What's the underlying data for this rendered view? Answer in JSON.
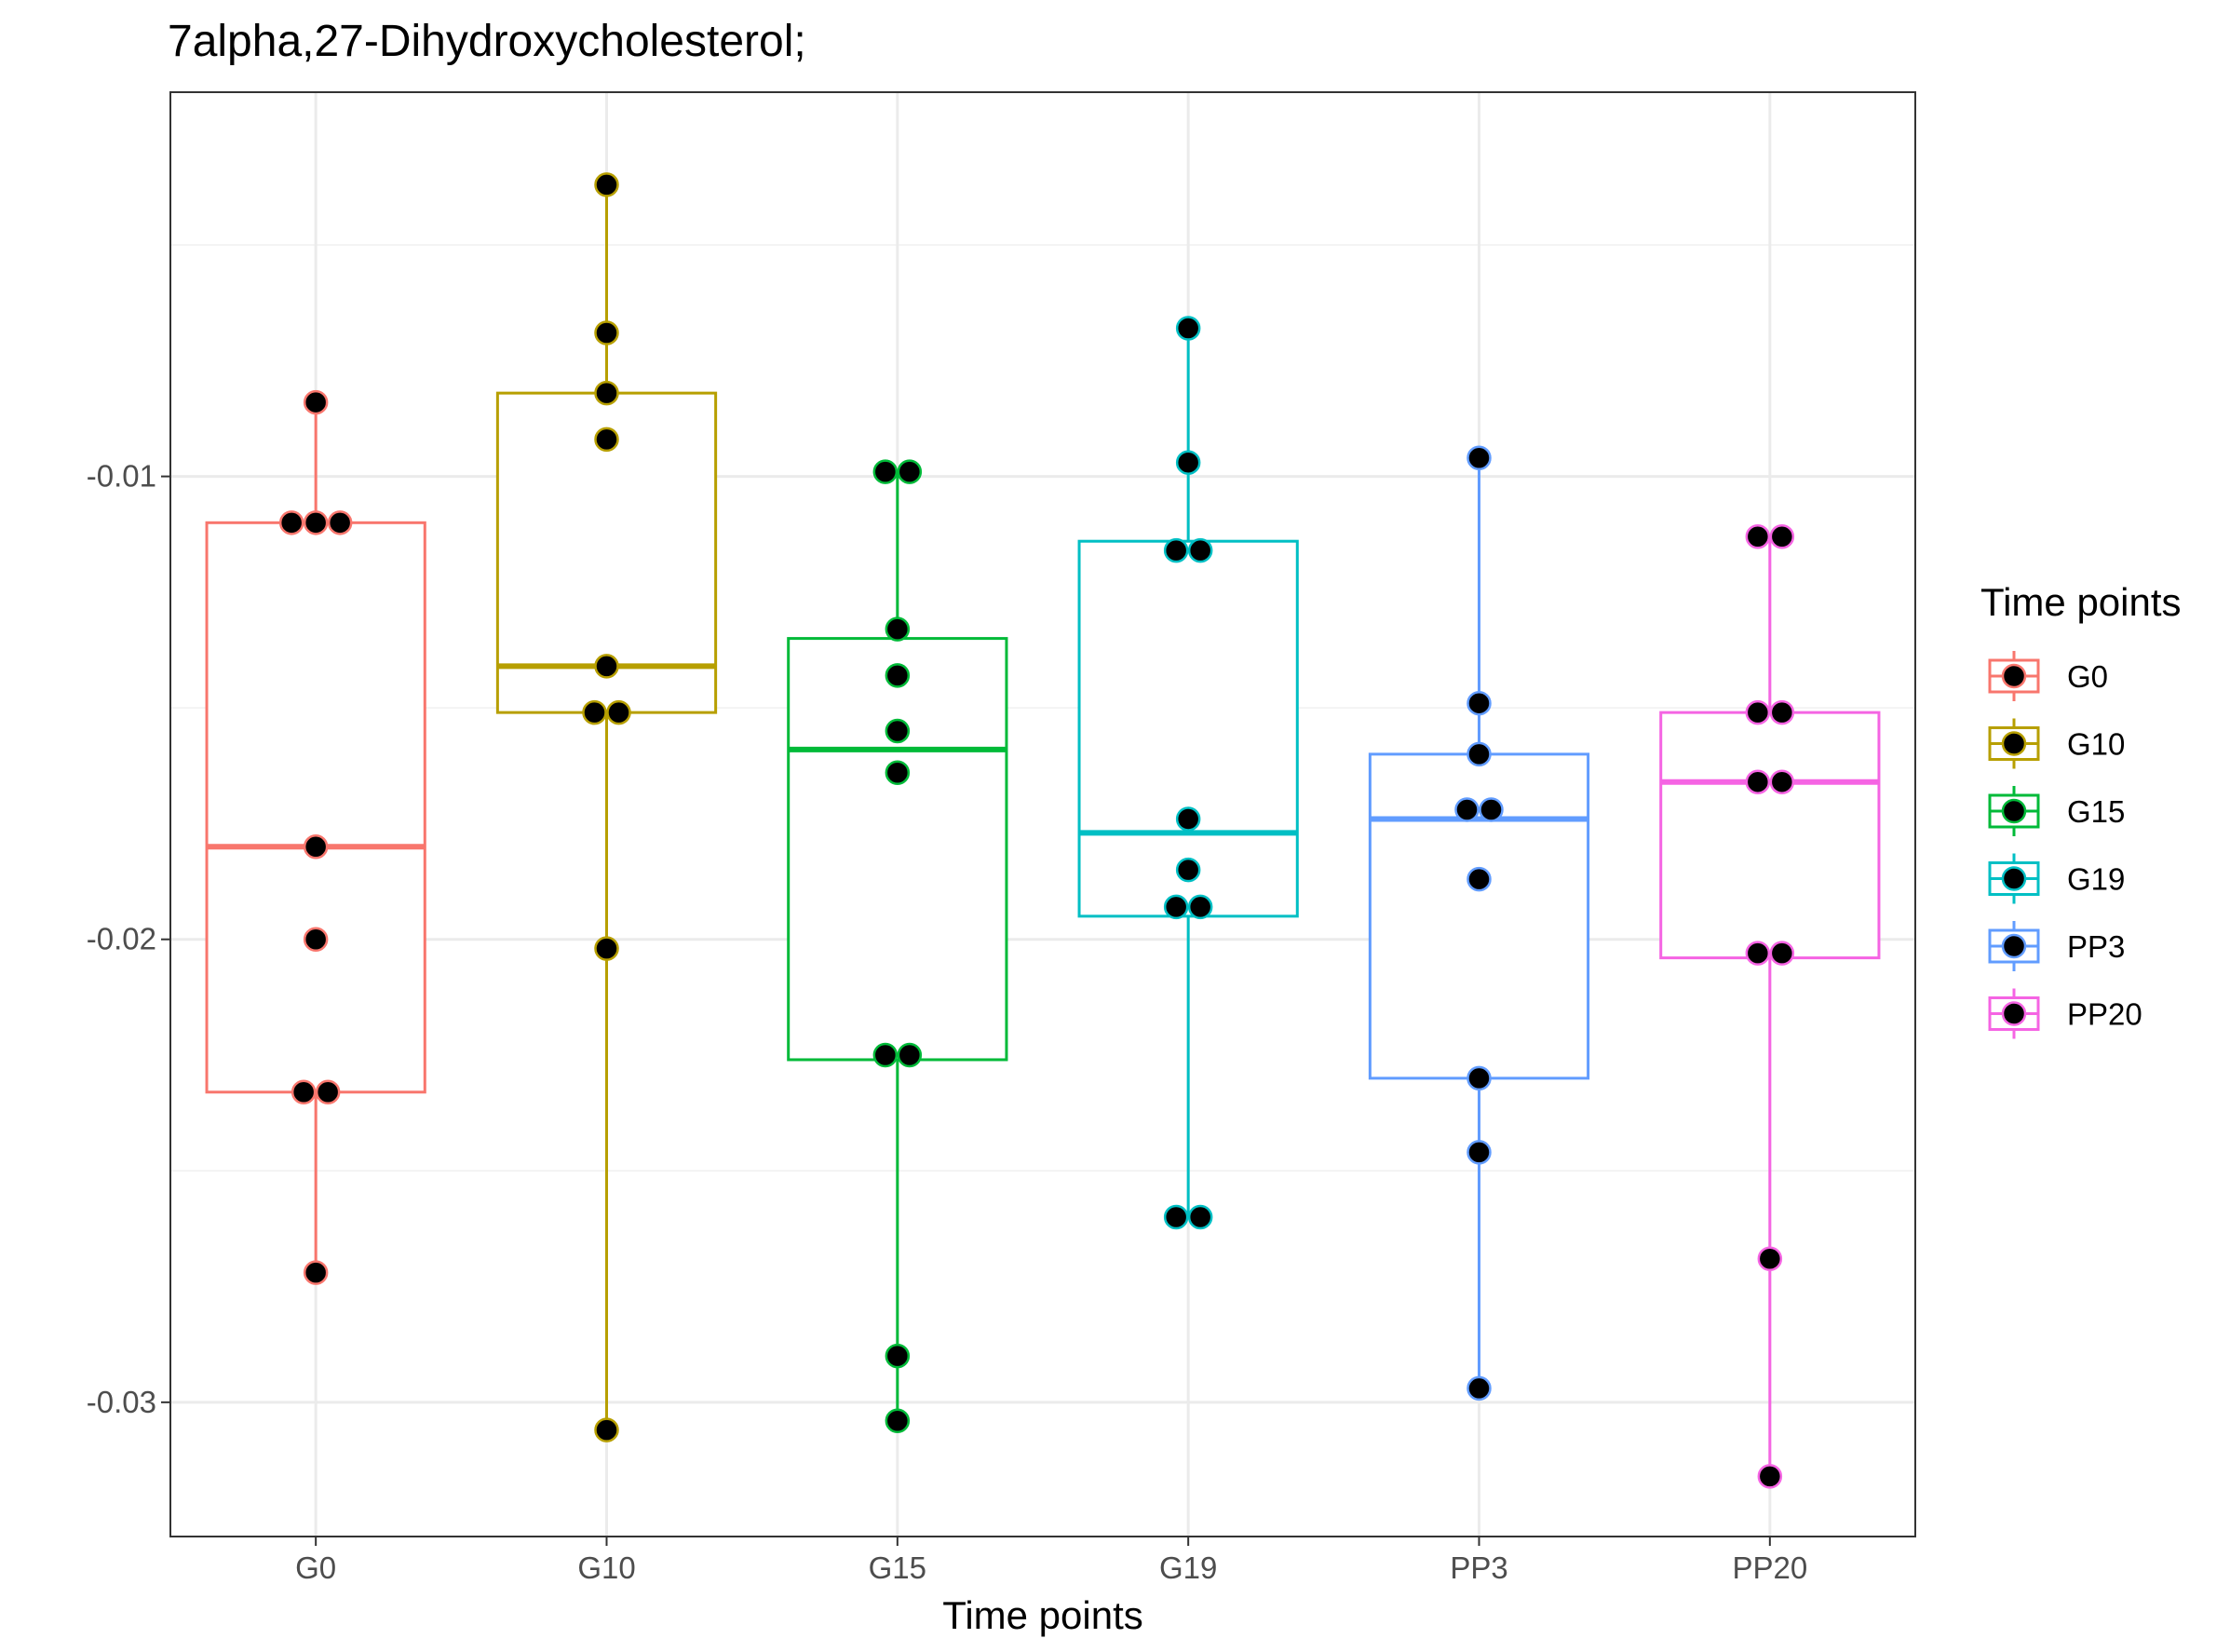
{
  "chart_data": {
    "type": "box",
    "title": "7alpha,27-Dihydroxycholesterol;",
    "xlabel": "Time points",
    "ylabel": "",
    "ylim": [
      -0.0329,
      -0.0017
    ],
    "yticks": [
      -0.01,
      -0.02,
      -0.03
    ],
    "ytick_labels": [
      "-0.01",
      "-0.02",
      "-0.03"
    ],
    "grid": true,
    "legend": {
      "title": "Time points",
      "position": "right"
    },
    "categories": [
      "G0",
      "G10",
      "G15",
      "G19",
      "PP3",
      "PP20"
    ],
    "series": [
      {
        "name": "G0",
        "color": "#F8766D",
        "box": {
          "min": -0.0272,
          "q1": -0.0233,
          "median": -0.018,
          "q3": -0.011,
          "max": -0.0084
        },
        "points": [
          -0.0084,
          -0.011,
          -0.011,
          -0.011,
          -0.018,
          -0.02,
          -0.0233,
          -0.0233,
          -0.0272
        ]
      },
      {
        "name": "G10",
        "color": "#B79F00",
        "box": {
          "min": -0.0306,
          "q1": -0.0151,
          "median": -0.0141,
          "q3": -0.0082,
          "max": -0.0037
        },
        "points": [
          -0.0037,
          -0.0069,
          -0.0082,
          -0.0092,
          -0.0141,
          -0.0151,
          -0.0151,
          -0.0202,
          -0.0306
        ]
      },
      {
        "name": "G15",
        "color": "#00BA38",
        "box": {
          "min": -0.0304,
          "q1": -0.0226,
          "median": -0.0159,
          "q3": -0.0135,
          "max": -0.0099
        },
        "points": [
          -0.0099,
          -0.0099,
          -0.0133,
          -0.0143,
          -0.0155,
          -0.0164,
          -0.0225,
          -0.0225,
          -0.029,
          -0.0304
        ]
      },
      {
        "name": "G19",
        "color": "#00BFC4",
        "box": {
          "min": -0.026,
          "q1": -0.0195,
          "median": -0.0177,
          "q3": -0.0114,
          "max": -0.0068
        },
        "points": [
          -0.0068,
          -0.0097,
          -0.0116,
          -0.0116,
          -0.0174,
          -0.0185,
          -0.0193,
          -0.0193,
          -0.026,
          -0.026
        ]
      },
      {
        "name": "PP3",
        "color": "#619CFF",
        "box": {
          "min": -0.0297,
          "q1": -0.023,
          "median": -0.0174,
          "q3": -0.016,
          "max": -0.0096
        },
        "points": [
          -0.0096,
          -0.0149,
          -0.016,
          -0.0172,
          -0.0172,
          -0.0187,
          -0.023,
          -0.0246,
          -0.0297
        ]
      },
      {
        "name": "PP20",
        "color": "#F564E3",
        "box": {
          "min": -0.0316,
          "q1": -0.0204,
          "median": -0.0166,
          "q3": -0.0151,
          "max": -0.0113
        },
        "points": [
          -0.0113,
          -0.0113,
          -0.0151,
          -0.0151,
          -0.0166,
          -0.0166,
          -0.0203,
          -0.0203,
          -0.0269,
          -0.0316
        ]
      }
    ]
  }
}
